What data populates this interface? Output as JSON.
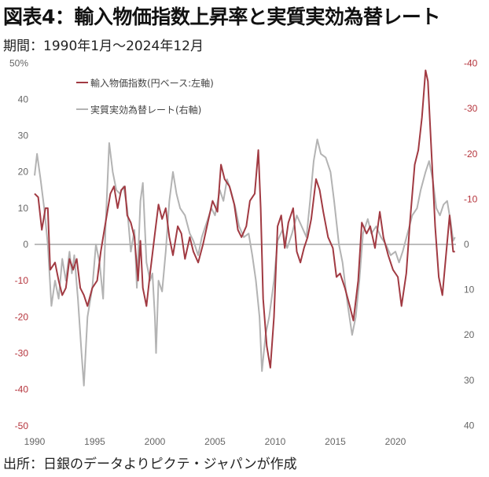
{
  "title": "図表4：輸入物価指数上昇率と実質実効為替レート",
  "subtitle": "期間：1990年1月～2024年12月",
  "source": "出所：日銀のデータよりピクテ・ジャパンが作成",
  "colors": {
    "import_price": "#a13a42",
    "reer": "#b3b3b3",
    "negative_tick": "#b5343c",
    "tick": "#666666"
  },
  "chart_data": {
    "type": "line",
    "title": "輸入物価指数上昇率と実質実効為替レート",
    "xlabel": "",
    "ylabel_left": "",
    "ylabel_right": "",
    "x_ticks": [
      "1990",
      "1995",
      "2000",
      "2005",
      "2010",
      "2015",
      "2020"
    ],
    "y_left": {
      "range": [
        -50,
        50
      ],
      "unit": "%",
      "ticks": [
        "50%",
        "40",
        "30",
        "20",
        "10",
        "0",
        "-10",
        "-20",
        "-30",
        "-40",
        "-50"
      ]
    },
    "y_right": {
      "range": [
        -40,
        40
      ],
      "inverted": true,
      "ticks": [
        "-40",
        "-30",
        "-20",
        "-10",
        "0",
        "10",
        "20",
        "30",
        "40"
      ]
    },
    "grid": false,
    "legend_position": "top-left",
    "series": [
      {
        "name": "輸入物価指数(円ベース:左軸)",
        "axis": "left",
        "points": [
          [
            1990.0,
            14
          ],
          [
            1990.3,
            13
          ],
          [
            1990.6,
            4
          ],
          [
            1990.9,
            10
          ],
          [
            1991.1,
            10
          ],
          [
            1991.3,
            -7
          ],
          [
            1991.7,
            -5
          ],
          [
            1992.0,
            -10
          ],
          [
            1992.3,
            -14
          ],
          [
            1992.6,
            -12
          ],
          [
            1992.9,
            -4
          ],
          [
            1993.2,
            -7
          ],
          [
            1993.5,
            -4
          ],
          [
            1993.8,
            -12
          ],
          [
            1994.1,
            -14
          ],
          [
            1994.4,
            -17
          ],
          [
            1994.8,
            -12
          ],
          [
            1995.2,
            -10
          ],
          [
            1995.5,
            -2
          ],
          [
            1995.8,
            4
          ],
          [
            1996.0,
            8
          ],
          [
            1996.3,
            14
          ],
          [
            1996.6,
            16
          ],
          [
            1996.9,
            10
          ],
          [
            1997.2,
            15
          ],
          [
            1997.5,
            16
          ],
          [
            1997.7,
            8
          ],
          [
            1998.0,
            6
          ],
          [
            1998.3,
            2
          ],
          [
            1998.6,
            -10
          ],
          [
            1998.8,
            1
          ],
          [
            1999.0,
            -12
          ],
          [
            1999.3,
            -17
          ],
          [
            1999.6,
            -8
          ],
          [
            2000.0,
            3
          ],
          [
            2000.3,
            11
          ],
          [
            2000.6,
            7
          ],
          [
            2000.9,
            10
          ],
          [
            2001.2,
            2
          ],
          [
            2001.5,
            -3
          ],
          [
            2001.9,
            5
          ],
          [
            2002.2,
            3
          ],
          [
            2002.5,
            -4
          ],
          [
            2002.9,
            2
          ],
          [
            2003.2,
            -2
          ],
          [
            2003.6,
            -5
          ],
          [
            2004.0,
            0
          ],
          [
            2004.4,
            6
          ],
          [
            2004.8,
            12
          ],
          [
            2005.2,
            9
          ],
          [
            2005.5,
            22
          ],
          [
            2005.8,
            18
          ],
          [
            2006.2,
            16
          ],
          [
            2006.6,
            11
          ],
          [
            2006.9,
            4
          ],
          [
            2007.2,
            2
          ],
          [
            2007.6,
            5
          ],
          [
            2007.9,
            12
          ],
          [
            2008.3,
            14
          ],
          [
            2008.6,
            26
          ],
          [
            2008.8,
            10
          ],
          [
            2009.0,
            -15
          ],
          [
            2009.3,
            -28
          ],
          [
            2009.6,
            -34
          ],
          [
            2009.9,
            -20
          ],
          [
            2010.2,
            5
          ],
          [
            2010.5,
            8
          ],
          [
            2010.8,
            -1
          ],
          [
            2011.1,
            6
          ],
          [
            2011.5,
            10
          ],
          [
            2011.8,
            -2
          ],
          [
            2012.1,
            -5
          ],
          [
            2012.4,
            -1
          ],
          [
            2012.7,
            2
          ],
          [
            2013.0,
            7
          ],
          [
            2013.4,
            18
          ],
          [
            2013.7,
            15
          ],
          [
            2014.0,
            9
          ],
          [
            2014.4,
            2
          ],
          [
            2014.8,
            -1
          ],
          [
            2015.1,
            -9
          ],
          [
            2015.4,
            -8
          ],
          [
            2015.8,
            -12
          ],
          [
            2016.2,
            -17
          ],
          [
            2016.5,
            -21
          ],
          [
            2016.9,
            -10
          ],
          [
            2017.2,
            6
          ],
          [
            2017.6,
            3
          ],
          [
            2017.9,
            5
          ],
          [
            2018.3,
            -1
          ],
          [
            2018.7,
            9
          ],
          [
            2019.0,
            2
          ],
          [
            2019.4,
            -3
          ],
          [
            2019.8,
            -7
          ],
          [
            2020.2,
            -9
          ],
          [
            2020.5,
            -17
          ],
          [
            2020.9,
            -8
          ],
          [
            2021.2,
            6
          ],
          [
            2021.6,
            22
          ],
          [
            2021.9,
            26
          ],
          [
            2022.2,
            35
          ],
          [
            2022.5,
            48
          ],
          [
            2022.7,
            45
          ],
          [
            2023.0,
            25
          ],
          [
            2023.3,
            5
          ],
          [
            2023.6,
            -9
          ],
          [
            2023.9,
            -14
          ],
          [
            2024.2,
            -3
          ],
          [
            2024.5,
            8
          ],
          [
            2024.8,
            -2
          ],
          [
            2024.95,
            -2
          ]
        ]
      },
      {
        "name": "実質実効為替レート(右軸)",
        "axis": "right",
        "points": [
          [
            1990.0,
            -15.2
          ],
          [
            1990.2,
            -20
          ],
          [
            1990.5,
            -14.4
          ],
          [
            1990.8,
            -8
          ],
          [
            1991.1,
            0
          ],
          [
            1991.4,
            13.6
          ],
          [
            1991.7,
            8
          ],
          [
            1992.0,
            12
          ],
          [
            1992.3,
            3.2
          ],
          [
            1992.6,
            8
          ],
          [
            1992.9,
            1.6
          ],
          [
            1993.1,
            6.4
          ],
          [
            1993.3,
            2.4
          ],
          [
            1993.6,
            12
          ],
          [
            1993.9,
            24
          ],
          [
            1994.1,
            31.2
          ],
          [
            1994.4,
            16
          ],
          [
            1994.8,
            9.6
          ],
          [
            1995.1,
            0
          ],
          [
            1995.4,
            4
          ],
          [
            1995.7,
            12
          ],
          [
            1995.9,
            -4
          ],
          [
            1996.2,
            -22.4
          ],
          [
            1996.5,
            -16
          ],
          [
            1996.8,
            -12
          ],
          [
            1997.1,
            -11.2
          ],
          [
            1997.4,
            -12.8
          ],
          [
            1997.7,
            -8
          ],
          [
            1998.0,
            1.6
          ],
          [
            1998.3,
            -3.2
          ],
          [
            1998.5,
            9.6
          ],
          [
            1998.8,
            -9.6
          ],
          [
            1999.0,
            -13.6
          ],
          [
            1999.3,
            4
          ],
          [
            1999.6,
            8
          ],
          [
            1999.8,
            6.4
          ],
          [
            2000.0,
            16
          ],
          [
            2000.1,
            24
          ],
          [
            2000.3,
            8
          ],
          [
            2000.6,
            10.4
          ],
          [
            2000.9,
            1.6
          ],
          [
            2001.2,
            -9.6
          ],
          [
            2001.5,
            -16
          ],
          [
            2001.8,
            -11.2
          ],
          [
            2002.1,
            -8
          ],
          [
            2002.5,
            -6.4
          ],
          [
            2002.9,
            -2.4
          ],
          [
            2003.2,
            -0.8
          ],
          [
            2003.6,
            2.4
          ],
          [
            2003.9,
            -1.6
          ],
          [
            2004.3,
            -4.8
          ],
          [
            2004.7,
            -8
          ],
          [
            2005.0,
            -6.4
          ],
          [
            2005.4,
            -12
          ],
          [
            2005.7,
            -9.6
          ],
          [
            2006.0,
            -14.4
          ],
          [
            2006.3,
            -12
          ],
          [
            2006.7,
            -8
          ],
          [
            2007.0,
            -4
          ],
          [
            2007.4,
            -1.6
          ],
          [
            2007.8,
            -2.4
          ],
          [
            2008.1,
            2.4
          ],
          [
            2008.4,
            8
          ],
          [
            2008.7,
            16
          ],
          [
            2008.9,
            28
          ],
          [
            2009.2,
            20
          ],
          [
            2009.5,
            16
          ],
          [
            2009.9,
            8
          ],
          [
            2010.2,
            -0.8
          ],
          [
            2010.6,
            -3.2
          ],
          [
            2011.0,
            0.8
          ],
          [
            2011.4,
            -2.4
          ],
          [
            2011.8,
            -6.4
          ],
          [
            2012.2,
            -4
          ],
          [
            2012.6,
            -1.6
          ],
          [
            2012.9,
            -9.6
          ],
          [
            2013.2,
            -18.4
          ],
          [
            2013.5,
            -23.2
          ],
          [
            2013.8,
            -20
          ],
          [
            2014.2,
            -19.2
          ],
          [
            2014.6,
            -16
          ],
          [
            2014.9,
            -9.6
          ],
          [
            2015.3,
            0
          ],
          [
            2015.6,
            4
          ],
          [
            2016.0,
            12.8
          ],
          [
            2016.4,
            20
          ],
          [
            2016.7,
            16
          ],
          [
            2017.0,
            8
          ],
          [
            2017.3,
            -2.4
          ],
          [
            2017.7,
            -5.6
          ],
          [
            2018.0,
            -2.4
          ],
          [
            2018.4,
            -4
          ],
          [
            2018.8,
            -1.6
          ],
          [
            2019.2,
            0
          ],
          [
            2019.6,
            2.4
          ],
          [
            2020.0,
            1.6
          ],
          [
            2020.3,
            4
          ],
          [
            2020.6,
            1.6
          ],
          [
            2021.0,
            -2.4
          ],
          [
            2021.4,
            -6.4
          ],
          [
            2021.8,
            -8
          ],
          [
            2022.1,
            -12
          ],
          [
            2022.5,
            -16
          ],
          [
            2022.8,
            -18.4
          ],
          [
            2023.1,
            -14.4
          ],
          [
            2023.4,
            -8
          ],
          [
            2023.7,
            -6.4
          ],
          [
            2024.0,
            -8.8
          ],
          [
            2024.3,
            -9.6
          ],
          [
            2024.6,
            -4.8
          ],
          [
            2024.8,
            -0.8
          ],
          [
            2024.95,
            -1.6
          ]
        ]
      }
    ]
  }
}
